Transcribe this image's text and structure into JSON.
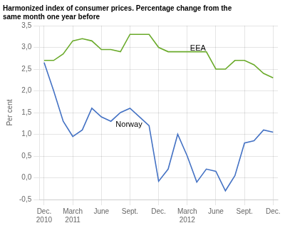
{
  "chart_data": {
    "type": "line",
    "title": [
      "Harmonized index of consumer prices. Percentage change from the",
      "same month one year before"
    ],
    "ylabel": "Per cent",
    "categories": [
      "Dec.\n2010",
      null,
      null,
      "March\n2011",
      null,
      null,
      "June",
      null,
      null,
      "Sept.",
      null,
      null,
      "Dec.",
      null,
      null,
      "March\n2012",
      null,
      null,
      "June",
      null,
      null,
      "Sept.",
      null,
      null,
      "Dec."
    ],
    "series": [
      {
        "name": "EEA",
        "color": "#6aaa2a",
        "values": [
          2.7,
          2.7,
          2.85,
          3.15,
          3.2,
          3.15,
          2.95,
          2.95,
          2.9,
          3.3,
          3.3,
          3.3,
          3.0,
          2.9,
          2.9,
          2.9,
          2.9,
          2.9,
          2.5,
          2.5,
          2.7,
          2.7,
          2.6,
          2.4,
          2.3
        ]
      },
      {
        "name": "Norway",
        "color": "#4472c4",
        "values": [
          2.65,
          2.0,
          1.3,
          0.95,
          1.1,
          1.6,
          1.4,
          1.3,
          1.5,
          1.6,
          1.4,
          1.2,
          -0.08,
          0.2,
          1.0,
          0.5,
          -0.1,
          0.2,
          0.15,
          -0.3,
          0.05,
          0.8,
          0.85,
          1.1,
          1.05
        ]
      }
    ],
    "annotations": [
      {
        "text": "EEA",
        "x": 15.3,
        "y": 2.93
      },
      {
        "text": "Norway",
        "x": 7.5,
        "y": 1.18
      }
    ],
    "ylim": [
      -0.5,
      3.5
    ],
    "yticks": [
      {
        "value": -0.5,
        "label": "-0,5"
      },
      {
        "value": 0.0,
        "label": "0,0"
      },
      {
        "value": 0.5,
        "label": "0,5"
      },
      {
        "value": 1.0,
        "label": "1,0"
      },
      {
        "value": 1.5,
        "label": "1,5"
      },
      {
        "value": 2.0,
        "label": "2,0"
      },
      {
        "value": 2.5,
        "label": "2,5"
      },
      {
        "value": 3.0,
        "label": "3,0"
      },
      {
        "value": 3.5,
        "label": "3,5"
      }
    ],
    "grid": true
  }
}
